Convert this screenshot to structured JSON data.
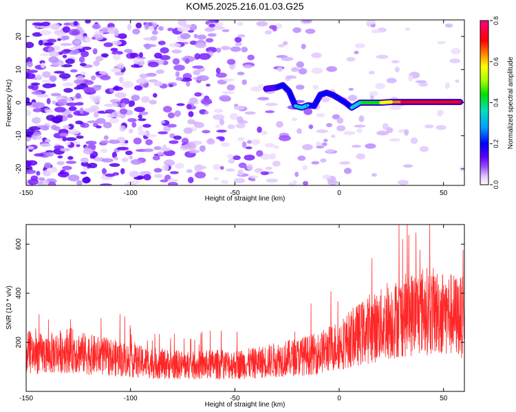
{
  "title": "KOM5.2025.216.01.03.G25",
  "chart_data": [
    {
      "type": "heatmap",
      "xlabel": "Height of straight line (km)",
      "ylabel": "Frequency (Hz)",
      "xlim": [
        -150,
        60
      ],
      "ylim": [
        -25,
        25
      ],
      "xticks": [
        -150,
        -100,
        -50,
        0,
        50
      ],
      "yticks": [
        -20,
        -10,
        0,
        10,
        20
      ],
      "colorbar": {
        "label": "Normalized spectral amplitude",
        "range": [
          0.0,
          0.8
        ],
        "ticks": [
          "0.0",
          "0.2",
          "0.4",
          "0.6",
          "0.8"
        ],
        "colors": [
          "#ffffff",
          "#e0c8ff",
          "#9a4dff",
          "#5a00ff",
          "#0000ff",
          "#00a0ff",
          "#00e0c0",
          "#00e000",
          "#a0ff00",
          "#ffff00",
          "#ff8000",
          "#ff0000",
          "#ff0080"
        ]
      },
      "signal_ridge": [
        {
          "x": -35,
          "y": 4.2,
          "amp": 0.25
        },
        {
          "x": -30,
          "y": 4.6,
          "amp": 0.3
        },
        {
          "x": -27,
          "y": 5.3,
          "amp": 0.3
        },
        {
          "x": -24,
          "y": 3.4,
          "amp": 0.3
        },
        {
          "x": -21,
          "y": -1.0,
          "amp": 0.4
        },
        {
          "x": -18,
          "y": -1.5,
          "amp": 0.45
        },
        {
          "x": -15,
          "y": -0.8,
          "amp": 0.4
        },
        {
          "x": -12,
          "y": -1.0,
          "amp": 0.3
        },
        {
          "x": -9,
          "y": 2.4,
          "amp": 0.35
        },
        {
          "x": -6,
          "y": 3.0,
          "amp": 0.35
        },
        {
          "x": -3,
          "y": 2.3,
          "amp": 0.3
        },
        {
          "x": 0,
          "y": 1.2,
          "amp": 0.3
        },
        {
          "x": 3,
          "y": 0.0,
          "amp": 0.3
        },
        {
          "x": 6,
          "y": -1.5,
          "amp": 0.45
        },
        {
          "x": 10,
          "y": 0.0,
          "amp": 0.45
        },
        {
          "x": 15,
          "y": 0.0,
          "amp": 0.5
        },
        {
          "x": 20,
          "y": 0.0,
          "amp": 0.55
        },
        {
          "x": 25,
          "y": 0.2,
          "amp": 0.6
        },
        {
          "x": 30,
          "y": 0.2,
          "amp": 0.75
        },
        {
          "x": 40,
          "y": 0.2,
          "amp": 0.8
        },
        {
          "x": 50,
          "y": 0.2,
          "amp": 0.8
        },
        {
          "x": 58,
          "y": 0.2,
          "amp": 0.8
        }
      ]
    },
    {
      "type": "line",
      "xlabel": "Height of straight line (km)",
      "ylabel": "SNR (10 * v/v)",
      "xlim": [
        -150,
        60
      ],
      "ylim": [
        0,
        680
      ],
      "xticks": [
        -150,
        -100,
        -50,
        0,
        50
      ],
      "yticks": [
        200,
        400,
        600
      ],
      "series": [
        {
          "color": "#ff0000",
          "x": [
            -150,
            -140,
            -130,
            -120,
            -110,
            -100,
            -90,
            -80,
            -70,
            -60,
            -50,
            -40,
            -30,
            -20,
            -10,
            0,
            10,
            20,
            30,
            40,
            50,
            60
          ],
          "values": [
            160,
            150,
            170,
            150,
            140,
            125,
            115,
            110,
            105,
            110,
            110,
            115,
            130,
            140,
            155,
            190,
            235,
            270,
            305,
            330,
            320,
            300
          ]
        }
      ]
    }
  ]
}
